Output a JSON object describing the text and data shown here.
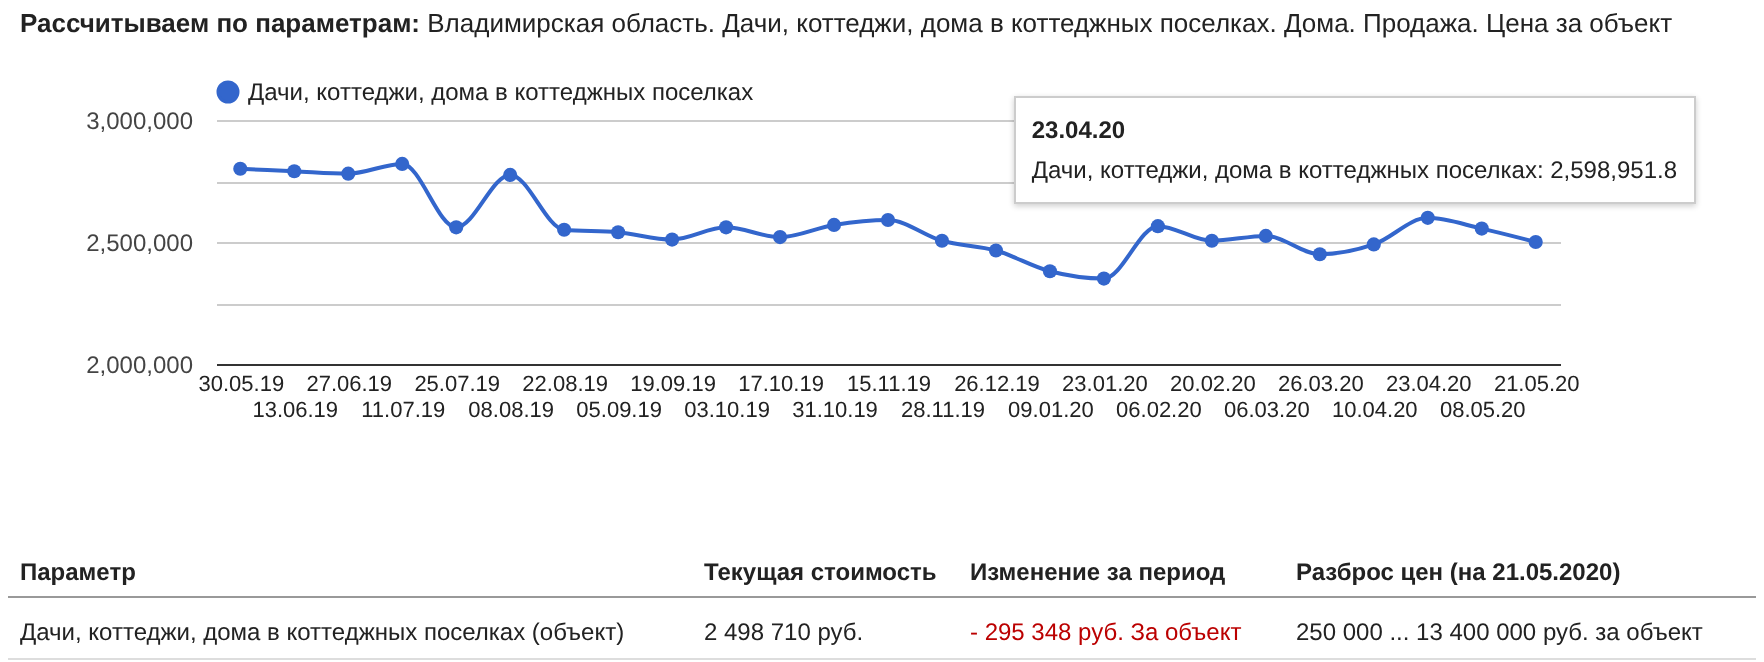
{
  "chart_data": {
    "type": "line",
    "title": "Рассчитываем по параметрам: Владимирская область. Дачи, коттеджи, дома в коттеджных поселках. Дома. Продажа. Цена за объект",
    "categories": [
      "30.05.19",
      "13.06.19",
      "27.06.19",
      "11.07.19",
      "25.07.19",
      "08.08.19",
      "22.08.19",
      "05.09.19",
      "19.09.19",
      "03.10.19",
      "17.10.19",
      "31.10.19",
      "15.11.19",
      "28.11.19",
      "26.12.19",
      "09.01.20",
      "23.01.20",
      "06.02.20",
      "20.02.20",
      "06.03.20",
      "26.03.20",
      "10.04.20",
      "23.04.20",
      "08.05.20",
      "21.05.20"
    ],
    "series": [
      {
        "name": "Дачи, коттеджи, дома в коттеджных поселках",
        "color": "#3366cc",
        "values": [
          2800000,
          2790000,
          2780000,
          2820000,
          2560000,
          2775000,
          2550000,
          2540000,
          2510000,
          2560000,
          2520000,
          2570000,
          2590000,
          2505000,
          2465000,
          2380000,
          2350000,
          2565000,
          2505000,
          2525000,
          2450000,
          2490000,
          2598951.8,
          2555000,
          2500000
        ]
      }
    ],
    "ylim": [
      2000000,
      3000000
    ],
    "yticks": [
      {
        "value": 2000000,
        "label": "2,000,000"
      },
      {
        "value": 2250000,
        "label": null
      },
      {
        "value": 2500000,
        "label": "2,500,000"
      },
      {
        "value": 2750000,
        "label": null
      },
      {
        "value": 3000000,
        "label": "3,000,000"
      }
    ],
    "grid": true,
    "legend": "top",
    "marker": "circle",
    "line_style": "solid",
    "annotations": [
      {
        "text": "23.04.20\nДачи, коттеджи, дома в коттеджных поселках: 2,598,951.8",
        "x": "23.04.20",
        "y": 2598951.8
      },
      "Параметр",
      "Текущая стоимость",
      "Изменение за период",
      "Разброс цен (на 21.05.2020)",
      "Дачи, коттеджи, дома в коттеджных поселках (объект)",
      "2 498 710 руб.",
      "- 295 348 руб. За объект",
      "250 000 ... 13 400 000 руб. за объект"
    ]
  }
}
